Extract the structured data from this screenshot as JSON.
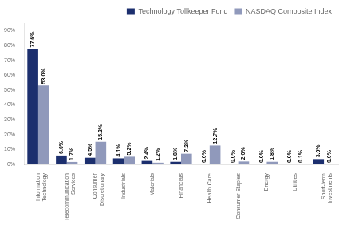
{
  "chart_data": {
    "type": "bar",
    "categories": [
      "Information\nTechnology",
      "Telecommunication\nServices",
      "Consumer\nDiscretionary",
      "Industrials",
      "Materials",
      "Financials",
      "Health Care",
      "Consumer Staples",
      "Energy",
      "Utilities",
      "Short-term\nInvestments"
    ],
    "series": [
      {
        "name": "Technology Tollkeeper Fund",
        "color": "#1c2f6e",
        "values": [
          77.6,
          6.0,
          4.5,
          4.1,
          2.4,
          1.8,
          0.0,
          0.0,
          0.0,
          0.0,
          3.6
        ],
        "value_labels": [
          "77.6%",
          "6.0%",
          "4.5%",
          "4.1%",
          "2.4%",
          "1.8%",
          "0.0%",
          "0.0%",
          "0.0%",
          "0.0%",
          "3.6%"
        ]
      },
      {
        "name": "NASDAQ Composite Index",
        "color": "#9099bb",
        "values": [
          53.0,
          1.7,
          15.2,
          5.2,
          1.2,
          7.2,
          12.7,
          2.0,
          1.8,
          0.1,
          0.0
        ],
        "value_labels": [
          "53.0%",
          "1.7%",
          "15.2%",
          "5.2%",
          "1.2%",
          "7.2%",
          "12.7%",
          "2.0%",
          "1.8%",
          "0.1%",
          "0.0%"
        ]
      }
    ],
    "ylim": [
      0,
      95
    ],
    "yticks": [
      {
        "value": 0,
        "label": "0%"
      },
      {
        "value": 10,
        "label": "10%"
      },
      {
        "value": 20,
        "label": "20%"
      },
      {
        "value": 30,
        "label": "30%"
      },
      {
        "value": 40,
        "label": "40%"
      },
      {
        "value": 50,
        "label": "50%"
      },
      {
        "value": 60,
        "label": "60%"
      },
      {
        "value": 70,
        "label": "70%"
      },
      {
        "value": 80,
        "label": "80%"
      },
      {
        "value": 90,
        "label": "90%"
      }
    ],
    "grid": false,
    "legend": "upper right",
    "data_labels": true
  }
}
